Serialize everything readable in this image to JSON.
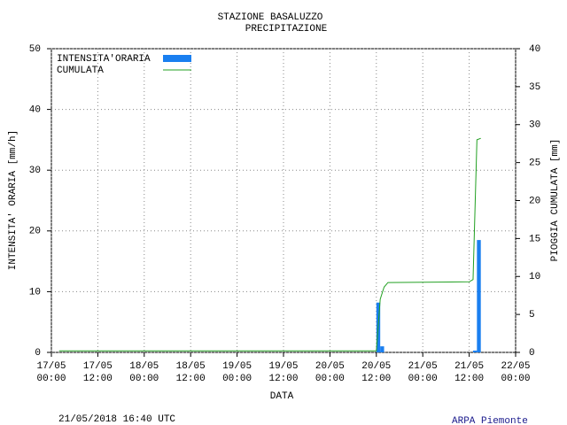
{
  "chart_data": {
    "type": "bar",
    "title": "STAZIONE BASALUZZO",
    "subtitle": "PRECIPITAZIONE",
    "x_label": "DATA",
    "y_label": "INTENSITA' ORARIA [mm/h]",
    "y2_label": "PIOGGIA CUMULATA [mm]",
    "xlim": [
      "17/05 00:00",
      "22/05 00:00"
    ],
    "xticks": [
      "17/05 00:00",
      "17/05 12:00",
      "18/05 00:00",
      "18/05 12:00",
      "19/05 00:00",
      "19/05 12:00",
      "20/05 00:00",
      "20/05 12:00",
      "21/05 00:00",
      "21/05 12:00",
      "22/05 00:00"
    ],
    "ylim": [
      0,
      50
    ],
    "yticks": [
      0,
      10,
      20,
      30,
      40,
      50
    ],
    "y2lim": [
      0,
      40
    ],
    "y2ticks": [
      0,
      5,
      10,
      15,
      20,
      25,
      30,
      35,
      40
    ],
    "grid": true,
    "legend": "top-left",
    "series": [
      {
        "name": "INTENSITA'ORARIA",
        "type": "bar",
        "color": "#1a7ff0",
        "x": [
          "20/05 12:00",
          "20/05 13:00",
          "21/05 13:00",
          "21/05 14:00"
        ],
        "values": [
          8.2,
          1.0,
          0.3,
          18.5
        ]
      },
      {
        "name": "CUMULATA",
        "type": "line",
        "axis": "y2",
        "color": "#22a022",
        "x": [
          "17/05 02:00",
          "20/05 12:00",
          "20/05 13:00",
          "20/05 14:00",
          "20/05 15:00",
          "21/05 12:00",
          "21/05 13:00",
          "21/05 14:00",
          "21/05 15:00"
        ],
        "values": [
          0.2,
          0.2,
          7.0,
          8.6,
          9.2,
          9.3,
          9.6,
          28.0,
          28.2
        ]
      }
    ],
    "footer_left": "21/05/2018 16:40 UTC",
    "footer_right": "ARPA Piemonte"
  }
}
